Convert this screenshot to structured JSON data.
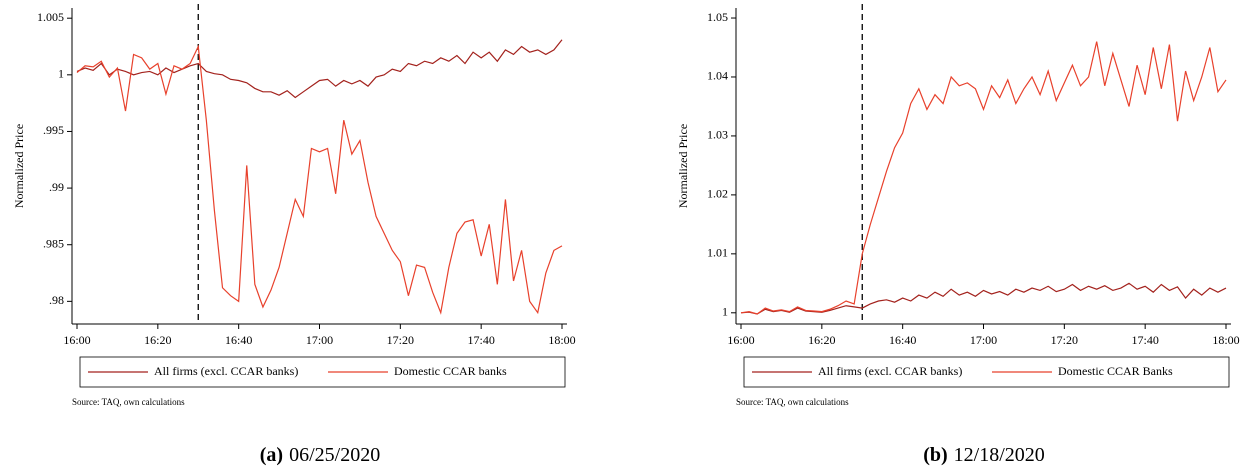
{
  "chart_data": [
    {
      "type": "line",
      "ylabel": "Normalized Price",
      "source": "Source: TAQ, own calculations",
      "caption_label": "(a)",
      "caption_date": "06/25/2020",
      "vline": "16:30",
      "xlim": [
        "16:00",
        "18:00"
      ],
      "xticks": [
        "16:00",
        "16:20",
        "16:40",
        "17:00",
        "17:20",
        "17:40",
        "18:00"
      ],
      "ylim": [
        0.978,
        1.0059
      ],
      "yticks": [
        {
          "value": 0.98,
          "label": ".98"
        },
        {
          "value": 0.985,
          "label": ".985"
        },
        {
          "value": 0.99,
          "label": ".99"
        },
        {
          "value": 0.995,
          "label": ".995"
        },
        1,
        1.005
      ],
      "x": [
        "16:00",
        "16:02",
        "16:04",
        "16:06",
        "16:08",
        "16:10",
        "16:12",
        "16:14",
        "16:16",
        "16:18",
        "16:20",
        "16:22",
        "16:24",
        "16:26",
        "16:28",
        "16:30",
        "16:32",
        "16:34",
        "16:36",
        "16:38",
        "16:40",
        "16:42",
        "16:44",
        "16:46",
        "16:48",
        "16:50",
        "16:52",
        "16:54",
        "16:56",
        "16:58",
        "17:00",
        "17:02",
        "17:04",
        "17:06",
        "17:08",
        "17:10",
        "17:12",
        "17:14",
        "17:16",
        "17:18",
        "17:20",
        "17:22",
        "17:24",
        "17:26",
        "17:28",
        "17:30",
        "17:32",
        "17:34",
        "17:36",
        "17:38",
        "17:40",
        "17:42",
        "17:44",
        "17:46",
        "17:48",
        "17:50",
        "17:52",
        "17:54",
        "17:56",
        "17:58",
        "18:00"
      ],
      "series": [
        {
          "name": "All firms (excl. CCAR banks)",
          "color": "#a3221d",
          "values": [
            1.0003,
            1.0006,
            1.0004,
            1.001,
            1.0,
            1.0005,
            1.0003,
            1.0,
            1.0002,
            1.0003,
            1.0,
            1.0006,
            1.0002,
            1.0005,
            1.0008,
            1.001,
            1.0003,
            1.0001,
            1.0,
            0.9996,
            0.9995,
            0.9993,
            0.9988,
            0.9985,
            0.9985,
            0.9982,
            0.9986,
            0.998,
            0.9985,
            0.999,
            0.9995,
            0.9996,
            0.999,
            0.9995,
            0.9992,
            0.9995,
            0.999,
            0.9998,
            1.0,
            1.0005,
            1.0003,
            1.001,
            1.0008,
            1.0012,
            1.001,
            1.0015,
            1.0012,
            1.0017,
            1.001,
            1.002,
            1.0015,
            1.002,
            1.0012,
            1.0022,
            1.0018,
            1.0025,
            1.002,
            1.0022,
            1.0018,
            1.0022,
            1.0031
          ]
        },
        {
          "name": "Domestic CCAR banks",
          "color": "#e8412c",
          "values": [
            1.0002,
            1.0008,
            1.0007,
            1.0012,
            0.9998,
            1.0006,
            0.9968,
            1.0018,
            1.0015,
            1.0005,
            1.001,
            0.9983,
            1.0008,
            1.0005,
            1.001,
            1.0025,
            0.996,
            0.988,
            0.9812,
            0.9805,
            0.98,
            0.992,
            0.9815,
            0.9795,
            0.981,
            0.983,
            0.986,
            0.989,
            0.9875,
            0.9935,
            0.9932,
            0.9935,
            0.9895,
            0.996,
            0.993,
            0.9942,
            0.9905,
            0.9875,
            0.986,
            0.9845,
            0.9835,
            0.9805,
            0.9832,
            0.983,
            0.9808,
            0.979,
            0.983,
            0.986,
            0.987,
            0.9872,
            0.984,
            0.9868,
            0.9815,
            0.989,
            0.9818,
            0.9845,
            0.98,
            0.979,
            0.9825,
            0.9845,
            0.9849
          ]
        }
      ]
    },
    {
      "type": "line",
      "ylabel": "Normalized Price",
      "source": "Source: TAQ, own calculations",
      "caption_label": "(b)",
      "caption_date": "12/18/2020",
      "vline": "16:30",
      "xlim": [
        "16:00",
        "18:00"
      ],
      "xticks": [
        "16:00",
        "16:20",
        "16:40",
        "17:00",
        "17:20",
        "17:40",
        "18:00"
      ],
      "ylim": [
        0.9981,
        1.0517
      ],
      "yticks": [
        1,
        1.01,
        1.02,
        1.03,
        1.04,
        1.05
      ],
      "x": [
        "16:00",
        "16:02",
        "16:04",
        "16:06",
        "16:08",
        "16:10",
        "16:12",
        "16:14",
        "16:16",
        "16:18",
        "16:20",
        "16:22",
        "16:24",
        "16:26",
        "16:28",
        "16:30",
        "16:32",
        "16:34",
        "16:36",
        "16:38",
        "16:40",
        "16:42",
        "16:44",
        "16:46",
        "16:48",
        "16:50",
        "16:52",
        "16:54",
        "16:56",
        "16:58",
        "17:00",
        "17:02",
        "17:04",
        "17:06",
        "17:08",
        "17:10",
        "17:12",
        "17:14",
        "17:16",
        "17:18",
        "17:20",
        "17:22",
        "17:24",
        "17:26",
        "17:28",
        "17:30",
        "17:32",
        "17:34",
        "17:36",
        "17:38",
        "17:40",
        "17:42",
        "17:44",
        "17:46",
        "17:48",
        "17:50",
        "17:52",
        "17:54",
        "17:56",
        "17:58",
        "18:00"
      ],
      "series": [
        {
          "name": "All firms (excl. CCAR banks)",
          "color": "#a3221d",
          "values": [
            1.0,
            1.0001,
            0.9998,
            1.0006,
            1.0002,
            1.0004,
            1.0001,
            1.0008,
            1.0003,
            1.0002,
            1.0001,
            1.0004,
            1.0008,
            1.0012,
            1.001,
            1.0008,
            1.0015,
            1.002,
            1.0022,
            1.0018,
            1.0025,
            1.002,
            1.003,
            1.0025,
            1.0035,
            1.0028,
            1.004,
            1.003,
            1.0035,
            1.0028,
            1.0038,
            1.0032,
            1.0036,
            1.003,
            1.004,
            1.0035,
            1.0042,
            1.0038,
            1.0045,
            1.0036,
            1.004,
            1.0048,
            1.0038,
            1.0045,
            1.004,
            1.0046,
            1.0038,
            1.0042,
            1.005,
            1.004,
            1.0045,
            1.0035,
            1.0048,
            1.0038,
            1.0044,
            1.0025,
            1.004,
            1.003,
            1.0042,
            1.0035,
            1.0042
          ]
        },
        {
          "name": "Domestic CCAR Banks",
          "color": "#e8412c",
          "values": [
            1.0,
            1.0002,
            0.9998,
            1.0008,
            1.0003,
            1.0005,
            1.0002,
            1.001,
            1.0004,
            1.0003,
            1.0002,
            1.0006,
            1.0012,
            1.002,
            1.0015,
            1.01,
            1.015,
            1.0195,
            1.024,
            1.028,
            1.0305,
            1.0355,
            1.038,
            1.0345,
            1.037,
            1.0355,
            1.04,
            1.0385,
            1.039,
            1.038,
            1.0345,
            1.0385,
            1.0365,
            1.0395,
            1.0355,
            1.038,
            1.04,
            1.037,
            1.041,
            1.036,
            1.039,
            1.042,
            1.0385,
            1.04,
            1.046,
            1.0385,
            1.044,
            1.0395,
            1.035,
            1.042,
            1.037,
            1.045,
            1.038,
            1.0455,
            1.0325,
            1.041,
            1.036,
            1.04,
            1.045,
            1.0375,
            1.0395
          ]
        }
      ]
    }
  ]
}
